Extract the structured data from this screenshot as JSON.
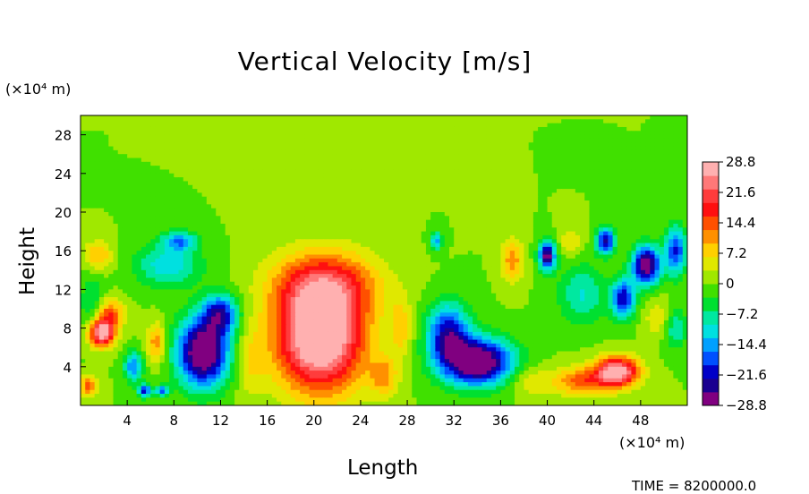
{
  "chart_data": {
    "type": "heatmap",
    "title": "Vertical Velocity [m/s]",
    "xlabel": "Length",
    "ylabel": "Height",
    "x_unit": "(×10⁴ m)",
    "y_unit": "(×10⁴ m)",
    "xlim": [
      0,
      52
    ],
    "ylim": [
      0,
      30
    ],
    "x_ticks": [
      4,
      8,
      12,
      16,
      20,
      24,
      28,
      32,
      36,
      40,
      44,
      48
    ],
    "x_tick_labels": [
      "4",
      "8",
      "12",
      "16",
      "20",
      "24",
      "28",
      "32",
      "36",
      "40",
      "44",
      "48"
    ],
    "y_ticks": [
      4,
      8,
      12,
      16,
      20,
      24,
      28
    ],
    "y_tick_labels": [
      "4",
      "8",
      "12",
      "16",
      "20",
      "24",
      "28"
    ],
    "colorbar": {
      "min": -28.8,
      "max": 28.8,
      "ticks": [
        28.8,
        21.6,
        14.4,
        7.2,
        0,
        -7.2,
        -14.4,
        -21.6,
        -28.8
      ],
      "tick_labels": [
        "28.8",
        "21.6",
        "14.4",
        "7.2",
        "0",
        "−7.2",
        "−14.4",
        "−21.6",
        "−28.8"
      ],
      "colors": [
        "#800080",
        "#1a0090",
        "#0000c8",
        "#0050ff",
        "#00a0ff",
        "#00e0e0",
        "#00e8a0",
        "#00e030",
        "#40e000",
        "#a0e800",
        "#e0e800",
        "#ffd000",
        "#ff9000",
        "#ff5000",
        "#ff1010",
        "#ff3c3c",
        "#ff7878",
        "#ffb0b0"
      ]
    },
    "background_value": 0,
    "features": [
      {
        "x": 20.5,
        "y": 7,
        "sx": 3.8,
        "sy": 5.5,
        "v": 34
      },
      {
        "x": 21,
        "y": 12.5,
        "sx": 4.5,
        "sy": 3.5,
        "v": 16
      },
      {
        "x": 10.5,
        "y": 5.5,
        "sx": 2.2,
        "sy": 3.5,
        "v": -33
      },
      {
        "x": 12,
        "y": 9.5,
        "sx": 1.5,
        "sy": 2,
        "v": -20
      },
      {
        "x": 34,
        "y": 4.5,
        "sx": 3,
        "sy": 2.4,
        "v": -33
      },
      {
        "x": 31.5,
        "y": 7.5,
        "sx": 1.8,
        "sy": 3,
        "v": -22
      },
      {
        "x": 46,
        "y": 3.5,
        "sx": 1.8,
        "sy": 1.5,
        "v": 30
      },
      {
        "x": 43,
        "y": 2.5,
        "sx": 2.5,
        "sy": 1.5,
        "v": 14
      },
      {
        "x": 1.8,
        "y": 7.5,
        "sx": 1.1,
        "sy": 1.4,
        "v": 30
      },
      {
        "x": 2.5,
        "y": 9.5,
        "sx": 1.2,
        "sy": 1.5,
        "v": 14
      },
      {
        "x": 0.7,
        "y": 2,
        "sx": 0.8,
        "sy": 1,
        "v": 14
      },
      {
        "x": 6.5,
        "y": 6.5,
        "sx": 0.8,
        "sy": 2,
        "v": 12
      },
      {
        "x": 4.5,
        "y": 4,
        "sx": 0.8,
        "sy": 1.5,
        "v": -16
      },
      {
        "x": 1,
        "y": 10.5,
        "sx": 1,
        "sy": 3,
        "v": -7
      },
      {
        "x": 7.5,
        "y": 14.5,
        "sx": 2.8,
        "sy": 2.2,
        "v": -12
      },
      {
        "x": 8.5,
        "y": 17,
        "sx": 1.5,
        "sy": 1,
        "v": -14
      },
      {
        "x": 1.5,
        "y": 15.5,
        "sx": 1.2,
        "sy": 1.5,
        "v": 10
      },
      {
        "x": 37,
        "y": 15,
        "sx": 0.9,
        "sy": 2.2,
        "v": 12
      },
      {
        "x": 30.5,
        "y": 17,
        "sx": 0.5,
        "sy": 1,
        "v": -14
      },
      {
        "x": 40,
        "y": 15.5,
        "sx": 0.7,
        "sy": 1.5,
        "v": -28
      },
      {
        "x": 45,
        "y": 17,
        "sx": 0.8,
        "sy": 1.3,
        "v": -24
      },
      {
        "x": 48.5,
        "y": 14.5,
        "sx": 1.2,
        "sy": 2,
        "v": -30
      },
      {
        "x": 46.5,
        "y": 11,
        "sx": 1,
        "sy": 2,
        "v": -22
      },
      {
        "x": 43,
        "y": 11.5,
        "sx": 2,
        "sy": 3,
        "v": -10
      },
      {
        "x": 42,
        "y": 17,
        "sx": 1,
        "sy": 1.5,
        "v": 6
      },
      {
        "x": 51,
        "y": 16,
        "sx": 0.9,
        "sy": 2.5,
        "v": -20
      },
      {
        "x": 51,
        "y": 8,
        "sx": 1,
        "sy": 2,
        "v": -10
      },
      {
        "x": 38.5,
        "y": 2.5,
        "sx": 1.8,
        "sy": 1.5,
        "v": 6
      },
      {
        "x": 14.5,
        "y": 4.5,
        "sx": 1.2,
        "sy": 3.5,
        "v": 6
      },
      {
        "x": 27.5,
        "y": 8,
        "sx": 0.9,
        "sy": 3,
        "v": 8
      },
      {
        "x": 26,
        "y": 3,
        "sx": 1.2,
        "sy": 2,
        "v": 10
      },
      {
        "x": 5.5,
        "y": 1.5,
        "sx": 0.6,
        "sy": 0.7,
        "v": -20
      },
      {
        "x": 7,
        "y": 1.5,
        "sx": 0.5,
        "sy": 0.6,
        "v": -18
      },
      {
        "x": 49.5,
        "y": 9,
        "sx": 1.2,
        "sy": 2,
        "v": 6
      }
    ]
  },
  "footer": {
    "time_label": "TIME = 8200000.0"
  }
}
